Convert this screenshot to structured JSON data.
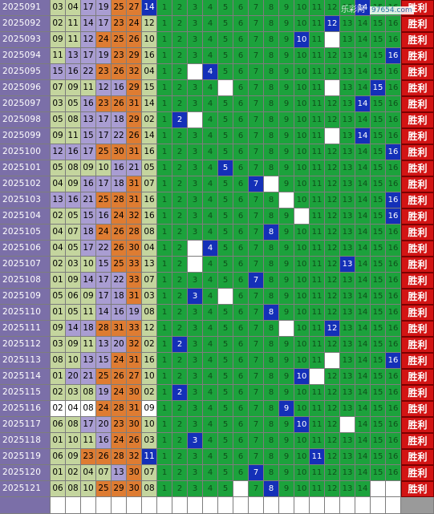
{
  "watermark": {
    "left": "乐彩网",
    "site": "97654.com"
  },
  "result_label": "胜利",
  "rows": [
    {
      "issue": "2025091",
      "nums": [
        "03",
        "04",
        "17",
        "19",
        "25",
        "27",
        "14"
      ],
      "color": [
        "g",
        "g",
        "p",
        "p",
        "o",
        "o",
        "b"
      ],
      "hit": 14
    },
    {
      "issue": "2025092",
      "nums": [
        "02",
        "11",
        "14",
        "17",
        "23",
        "24",
        "12"
      ],
      "color": [
        "g",
        "g",
        "p",
        "p",
        "o",
        "o",
        "g"
      ],
      "hit": 12
    },
    {
      "issue": "2025093",
      "nums": [
        "09",
        "11",
        "12",
        "24",
        "25",
        "26",
        "10"
      ],
      "color": [
        "g",
        "g",
        "p",
        "o",
        "o",
        "o",
        "g"
      ],
      "hit": 10
    },
    {
      "issue": "2025094",
      "nums": [
        "11",
        "13",
        "17",
        "19",
        "23",
        "29",
        "16"
      ],
      "color": [
        "g",
        "p",
        "p",
        "p",
        "o",
        "o",
        "g"
      ],
      "hit": 16
    },
    {
      "issue": "2025095",
      "nums": [
        "15",
        "16",
        "22",
        "23",
        "26",
        "32",
        "04"
      ],
      "color": [
        "p",
        "p",
        "p",
        "o",
        "o",
        "o",
        "g"
      ],
      "hit": 4
    },
    {
      "issue": "2025096",
      "nums": [
        "07",
        "09",
        "11",
        "12",
        "16",
        "29",
        "15"
      ],
      "color": [
        "g",
        "g",
        "g",
        "p",
        "p",
        "o",
        "g"
      ],
      "hit": 15
    },
    {
      "issue": "2025097",
      "nums": [
        "03",
        "05",
        "16",
        "23",
        "26",
        "31",
        "14"
      ],
      "color": [
        "g",
        "g",
        "p",
        "o",
        "o",
        "o",
        "g"
      ],
      "hit": 14
    },
    {
      "issue": "2025098",
      "nums": [
        "05",
        "08",
        "13",
        "17",
        "18",
        "29",
        "02"
      ],
      "color": [
        "g",
        "g",
        "p",
        "p",
        "p",
        "o",
        "g"
      ],
      "hit": 2
    },
    {
      "issue": "2025099",
      "nums": [
        "09",
        "11",
        "15",
        "17",
        "22",
        "26",
        "14"
      ],
      "color": [
        "g",
        "g",
        "p",
        "p",
        "p",
        "o",
        "g"
      ],
      "hit": 14
    },
    {
      "issue": "2025100",
      "nums": [
        "12",
        "16",
        "17",
        "25",
        "30",
        "31",
        "16"
      ],
      "color": [
        "p",
        "p",
        "p",
        "o",
        "o",
        "o",
        "g"
      ],
      "hit": 16
    },
    {
      "issue": "2025101",
      "nums": [
        "05",
        "08",
        "09",
        "10",
        "16",
        "21",
        "05"
      ],
      "color": [
        "g",
        "g",
        "g",
        "g",
        "p",
        "p",
        "g"
      ],
      "hit": 5
    },
    {
      "issue": "2025102",
      "nums": [
        "04",
        "09",
        "16",
        "17",
        "18",
        "31",
        "07"
      ],
      "color": [
        "g",
        "g",
        "p",
        "p",
        "p",
        "o",
        "g"
      ],
      "hit": 7
    },
    {
      "issue": "2025103",
      "nums": [
        "13",
        "16",
        "21",
        "25",
        "28",
        "31",
        "16"
      ],
      "color": [
        "p",
        "p",
        "p",
        "o",
        "o",
        "o",
        "g"
      ],
      "hit": 16
    },
    {
      "issue": "2025104",
      "nums": [
        "02",
        "05",
        "15",
        "16",
        "24",
        "32",
        "16"
      ],
      "color": [
        "g",
        "g",
        "p",
        "p",
        "o",
        "o",
        "g"
      ],
      "hit": 16
    },
    {
      "issue": "2025105",
      "nums": [
        "04",
        "07",
        "18",
        "24",
        "26",
        "28",
        "08"
      ],
      "color": [
        "g",
        "g",
        "p",
        "o",
        "o",
        "o",
        "g"
      ],
      "hit": 8
    },
    {
      "issue": "2025106",
      "nums": [
        "04",
        "05",
        "17",
        "22",
        "26",
        "30",
        "04"
      ],
      "color": [
        "g",
        "g",
        "p",
        "p",
        "o",
        "o",
        "g"
      ],
      "hit": 4
    },
    {
      "issue": "2025107",
      "nums": [
        "02",
        "03",
        "10",
        "15",
        "25",
        "33",
        "13"
      ],
      "color": [
        "g",
        "g",
        "g",
        "p",
        "o",
        "o",
        "g"
      ],
      "hit": 13
    },
    {
      "issue": "2025108",
      "nums": [
        "01",
        "09",
        "14",
        "17",
        "22",
        "33",
        "07"
      ],
      "color": [
        "g",
        "g",
        "p",
        "p",
        "p",
        "o",
        "g"
      ],
      "hit": 7
    },
    {
      "issue": "2025109",
      "nums": [
        "05",
        "06",
        "09",
        "17",
        "18",
        "31",
        "03"
      ],
      "color": [
        "g",
        "g",
        "g",
        "p",
        "p",
        "o",
        "g"
      ],
      "hit": 3
    },
    {
      "issue": "2025110",
      "nums": [
        "01",
        "05",
        "11",
        "14",
        "16",
        "19",
        "08"
      ],
      "color": [
        "g",
        "g",
        "g",
        "p",
        "p",
        "p",
        "g"
      ],
      "hit": 8
    },
    {
      "issue": "2025111",
      "nums": [
        "09",
        "14",
        "18",
        "28",
        "31",
        "33",
        "12"
      ],
      "color": [
        "g",
        "p",
        "p",
        "o",
        "o",
        "o",
        "g"
      ],
      "hit": 12
    },
    {
      "issue": "2025112",
      "nums": [
        "03",
        "09",
        "11",
        "13",
        "20",
        "32",
        "02"
      ],
      "color": [
        "g",
        "g",
        "g",
        "p",
        "p",
        "o",
        "g"
      ],
      "hit": 2
    },
    {
      "issue": "2025113",
      "nums": [
        "08",
        "10",
        "13",
        "15",
        "24",
        "31",
        "16"
      ],
      "color": [
        "g",
        "g",
        "p",
        "p",
        "o",
        "o",
        "g"
      ],
      "hit": 16
    },
    {
      "issue": "2025114",
      "nums": [
        "01",
        "20",
        "21",
        "25",
        "26",
        "27",
        "10"
      ],
      "color": [
        "g",
        "p",
        "p",
        "o",
        "o",
        "o",
        "g"
      ],
      "hit": 10
    },
    {
      "issue": "2025115",
      "nums": [
        "02",
        "03",
        "08",
        "19",
        "24",
        "30",
        "02"
      ],
      "color": [
        "g",
        "g",
        "g",
        "p",
        "o",
        "o",
        "g"
      ],
      "hit": 2
    },
    {
      "issue": "2025116",
      "nums": [
        "02",
        "04",
        "08",
        "24",
        "28",
        "31",
        "09"
      ],
      "color": [
        "w",
        "w",
        "w",
        "o",
        "o",
        "o",
        "w"
      ],
      "hit": 9
    },
    {
      "issue": "2025117",
      "nums": [
        "06",
        "08",
        "17",
        "20",
        "23",
        "30",
        "10"
      ],
      "color": [
        "g",
        "g",
        "p",
        "p",
        "o",
        "o",
        "g"
      ],
      "hit": 10
    },
    {
      "issue": "2025118",
      "nums": [
        "01",
        "10",
        "11",
        "16",
        "24",
        "26",
        "03"
      ],
      "color": [
        "g",
        "g",
        "g",
        "p",
        "o",
        "o",
        "g"
      ],
      "hit": 3
    },
    {
      "issue": "2025119",
      "nums": [
        "06",
        "09",
        "23",
        "26",
        "28",
        "32",
        "11"
      ],
      "color": [
        "g",
        "g",
        "o",
        "o",
        "o",
        "o",
        "b"
      ],
      "hit": 11
    },
    {
      "issue": "2025120",
      "nums": [
        "01",
        "02",
        "04",
        "07",
        "13",
        "30",
        "07"
      ],
      "color": [
        "g",
        "g",
        "g",
        "g",
        "p",
        "o",
        "g"
      ],
      "hit": 7
    },
    {
      "issue": "2025121",
      "nums": [
        "06",
        "08",
        "10",
        "25",
        "29",
        "30",
        "08"
      ],
      "color": [
        "g",
        "g",
        "g",
        "o",
        "o",
        "o",
        "g"
      ],
      "hit": 8
    }
  ],
  "blanks": [
    [],
    [],
    [
      12
    ],
    [],
    [
      3
    ],
    [
      5,
      12
    ],
    [],
    [
      3
    ],
    [
      12
    ],
    [],
    [],
    [
      8
    ],
    [
      9
    ],
    [
      10
    ],
    [],
    [
      3
    ],
    [
      3
    ],
    [],
    [
      5
    ],
    [],
    [
      9
    ],
    [],
    [
      12
    ],
    [
      11
    ],
    [],
    [],
    [
      13
    ],
    [],
    [],
    [],
    [
      6,
      15,
      16
    ]
  ],
  "colors": {
    "issue_bg": "#7b6fa8",
    "green_ball": "#c4d59e",
    "purple_ball": "#a99dd2",
    "orange_ball": "#de7c32",
    "board_green": "#1ca23c",
    "hit_blue": "#1430b8",
    "result_red": "#d21414"
  }
}
